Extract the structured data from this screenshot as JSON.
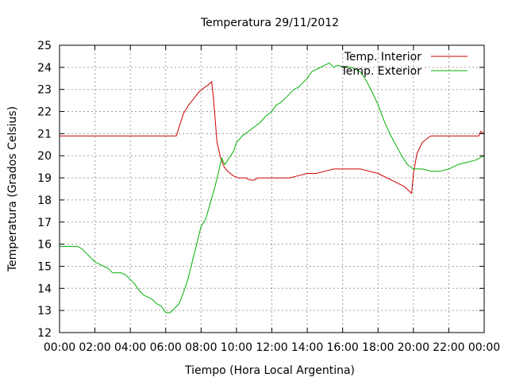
{
  "chart_data": {
    "type": "line",
    "title": "Temperatura 29/11/2012",
    "xlabel": "Tiempo (Hora Local Argentina)",
    "ylabel": "Temperatura (Grados Celsius)",
    "xlim": [
      "00:00",
      "24:00"
    ],
    "ylim": [
      12,
      25
    ],
    "x_tick_labels": [
      "00:00",
      "02:00",
      "04:00",
      "06:00",
      "08:00",
      "10:00",
      "12:00",
      "14:00",
      "16:00",
      "18:00",
      "20:00",
      "22:00",
      "00:00"
    ],
    "y_ticks": [
      12,
      13,
      14,
      15,
      16,
      17,
      18,
      19,
      20,
      21,
      22,
      23,
      24,
      25
    ],
    "grid": true,
    "legend_position": "top-right",
    "series": [
      {
        "name": "Temp. Interior",
        "color": "#cc0000",
        "points": [
          [
            "00:00",
            20.9
          ],
          [
            "02:00",
            20.9
          ],
          [
            "04:00",
            20.9
          ],
          [
            "06:00",
            20.9
          ],
          [
            "06:36",
            20.9
          ],
          [
            "06:48",
            21.4
          ],
          [
            "07:00",
            21.9
          ],
          [
            "07:18",
            22.3
          ],
          [
            "07:36",
            22.6
          ],
          [
            "07:54",
            22.9
          ],
          [
            "08:12",
            23.1
          ],
          [
            "08:24",
            23.2
          ],
          [
            "08:36",
            23.35
          ],
          [
            "08:42",
            22.6
          ],
          [
            "08:48",
            21.6
          ],
          [
            "08:54",
            20.6
          ],
          [
            "09:06",
            19.9
          ],
          [
            "09:18",
            19.5
          ],
          [
            "09:30",
            19.3
          ],
          [
            "09:48",
            19.1
          ],
          [
            "10:06",
            19.0
          ],
          [
            "10:30",
            19.0
          ],
          [
            "10:48",
            18.9
          ],
          [
            "11:00",
            18.9
          ],
          [
            "11:12",
            19.0
          ],
          [
            "12:00",
            19.0
          ],
          [
            "13:00",
            19.0
          ],
          [
            "13:30",
            19.1
          ],
          [
            "14:00",
            19.2
          ],
          [
            "14:30",
            19.2
          ],
          [
            "15:00",
            19.3
          ],
          [
            "15:30",
            19.4
          ],
          [
            "16:00",
            19.4
          ],
          [
            "17:00",
            19.4
          ],
          [
            "17:30",
            19.3
          ],
          [
            "18:00",
            19.2
          ],
          [
            "18:30",
            19.0
          ],
          [
            "19:00",
            18.8
          ],
          [
            "19:30",
            18.6
          ],
          [
            "19:54",
            18.3
          ],
          [
            "20:00",
            19.2
          ],
          [
            "20:12",
            20.1
          ],
          [
            "20:30",
            20.6
          ],
          [
            "20:48",
            20.8
          ],
          [
            "21:00",
            20.9
          ],
          [
            "22:00",
            20.9
          ],
          [
            "23:00",
            20.9
          ],
          [
            "23:42",
            20.9
          ],
          [
            "23:48",
            21.1
          ],
          [
            "24:00",
            21.0
          ]
        ]
      },
      {
        "name": "Temp. Exterior",
        "color": "#00b000",
        "points": [
          [
            "00:00",
            15.9
          ],
          [
            "00:30",
            15.9
          ],
          [
            "01:00",
            15.9
          ],
          [
            "01:15",
            15.8
          ],
          [
            "01:30",
            15.6
          ],
          [
            "01:45",
            15.4
          ],
          [
            "02:00",
            15.2
          ],
          [
            "02:30",
            15.0
          ],
          [
            "02:45",
            14.9
          ],
          [
            "03:00",
            14.7
          ],
          [
            "03:30",
            14.7
          ],
          [
            "03:45",
            14.6
          ],
          [
            "04:00",
            14.4
          ],
          [
            "04:15",
            14.2
          ],
          [
            "04:30",
            13.9
          ],
          [
            "04:45",
            13.7
          ],
          [
            "05:00",
            13.6
          ],
          [
            "05:15",
            13.5
          ],
          [
            "05:30",
            13.3
          ],
          [
            "05:45",
            13.2
          ],
          [
            "06:00",
            12.9
          ],
          [
            "06:15",
            12.9
          ],
          [
            "06:30",
            13.1
          ],
          [
            "06:45",
            13.3
          ],
          [
            "07:00",
            13.8
          ],
          [
            "07:15",
            14.4
          ],
          [
            "07:30",
            15.2
          ],
          [
            "07:45",
            16.0
          ],
          [
            "08:00",
            16.8
          ],
          [
            "08:15",
            17.1
          ],
          [
            "08:30",
            17.8
          ],
          [
            "08:45",
            18.5
          ],
          [
            "09:00",
            19.3
          ],
          [
            "09:10",
            19.9
          ],
          [
            "09:20",
            19.6
          ],
          [
            "09:35",
            19.9
          ],
          [
            "09:50",
            20.2
          ],
          [
            "10:00",
            20.6
          ],
          [
            "10:20",
            20.9
          ],
          [
            "10:40",
            21.1
          ],
          [
            "11:00",
            21.3
          ],
          [
            "11:20",
            21.5
          ],
          [
            "11:40",
            21.8
          ],
          [
            "12:00",
            22.0
          ],
          [
            "12:15",
            22.3
          ],
          [
            "12:30",
            22.4
          ],
          [
            "12:45",
            22.6
          ],
          [
            "13:00",
            22.8
          ],
          [
            "13:15",
            23.0
          ],
          [
            "13:30",
            23.1
          ],
          [
            "13:45",
            23.3
          ],
          [
            "14:00",
            23.5
          ],
          [
            "14:15",
            23.8
          ],
          [
            "14:30",
            23.9
          ],
          [
            "14:45",
            24.0
          ],
          [
            "15:00",
            24.1
          ],
          [
            "15:15",
            24.2
          ],
          [
            "15:30",
            24.0
          ],
          [
            "15:45",
            24.1
          ],
          [
            "16:00",
            24.0
          ],
          [
            "16:30",
            24.0
          ],
          [
            "17:00",
            23.8
          ],
          [
            "17:20",
            23.4
          ],
          [
            "17:40",
            22.9
          ],
          [
            "18:00",
            22.3
          ],
          [
            "18:20",
            21.6
          ],
          [
            "18:40",
            21.0
          ],
          [
            "19:00",
            20.5
          ],
          [
            "19:20",
            20.0
          ],
          [
            "19:40",
            19.6
          ],
          [
            "20:00",
            19.4
          ],
          [
            "20:30",
            19.4
          ],
          [
            "21:00",
            19.3
          ],
          [
            "21:30",
            19.3
          ],
          [
            "22:00",
            19.4
          ],
          [
            "22:30",
            19.6
          ],
          [
            "23:00",
            19.7
          ],
          [
            "23:30",
            19.8
          ],
          [
            "24:00",
            20.0
          ]
        ]
      }
    ]
  }
}
